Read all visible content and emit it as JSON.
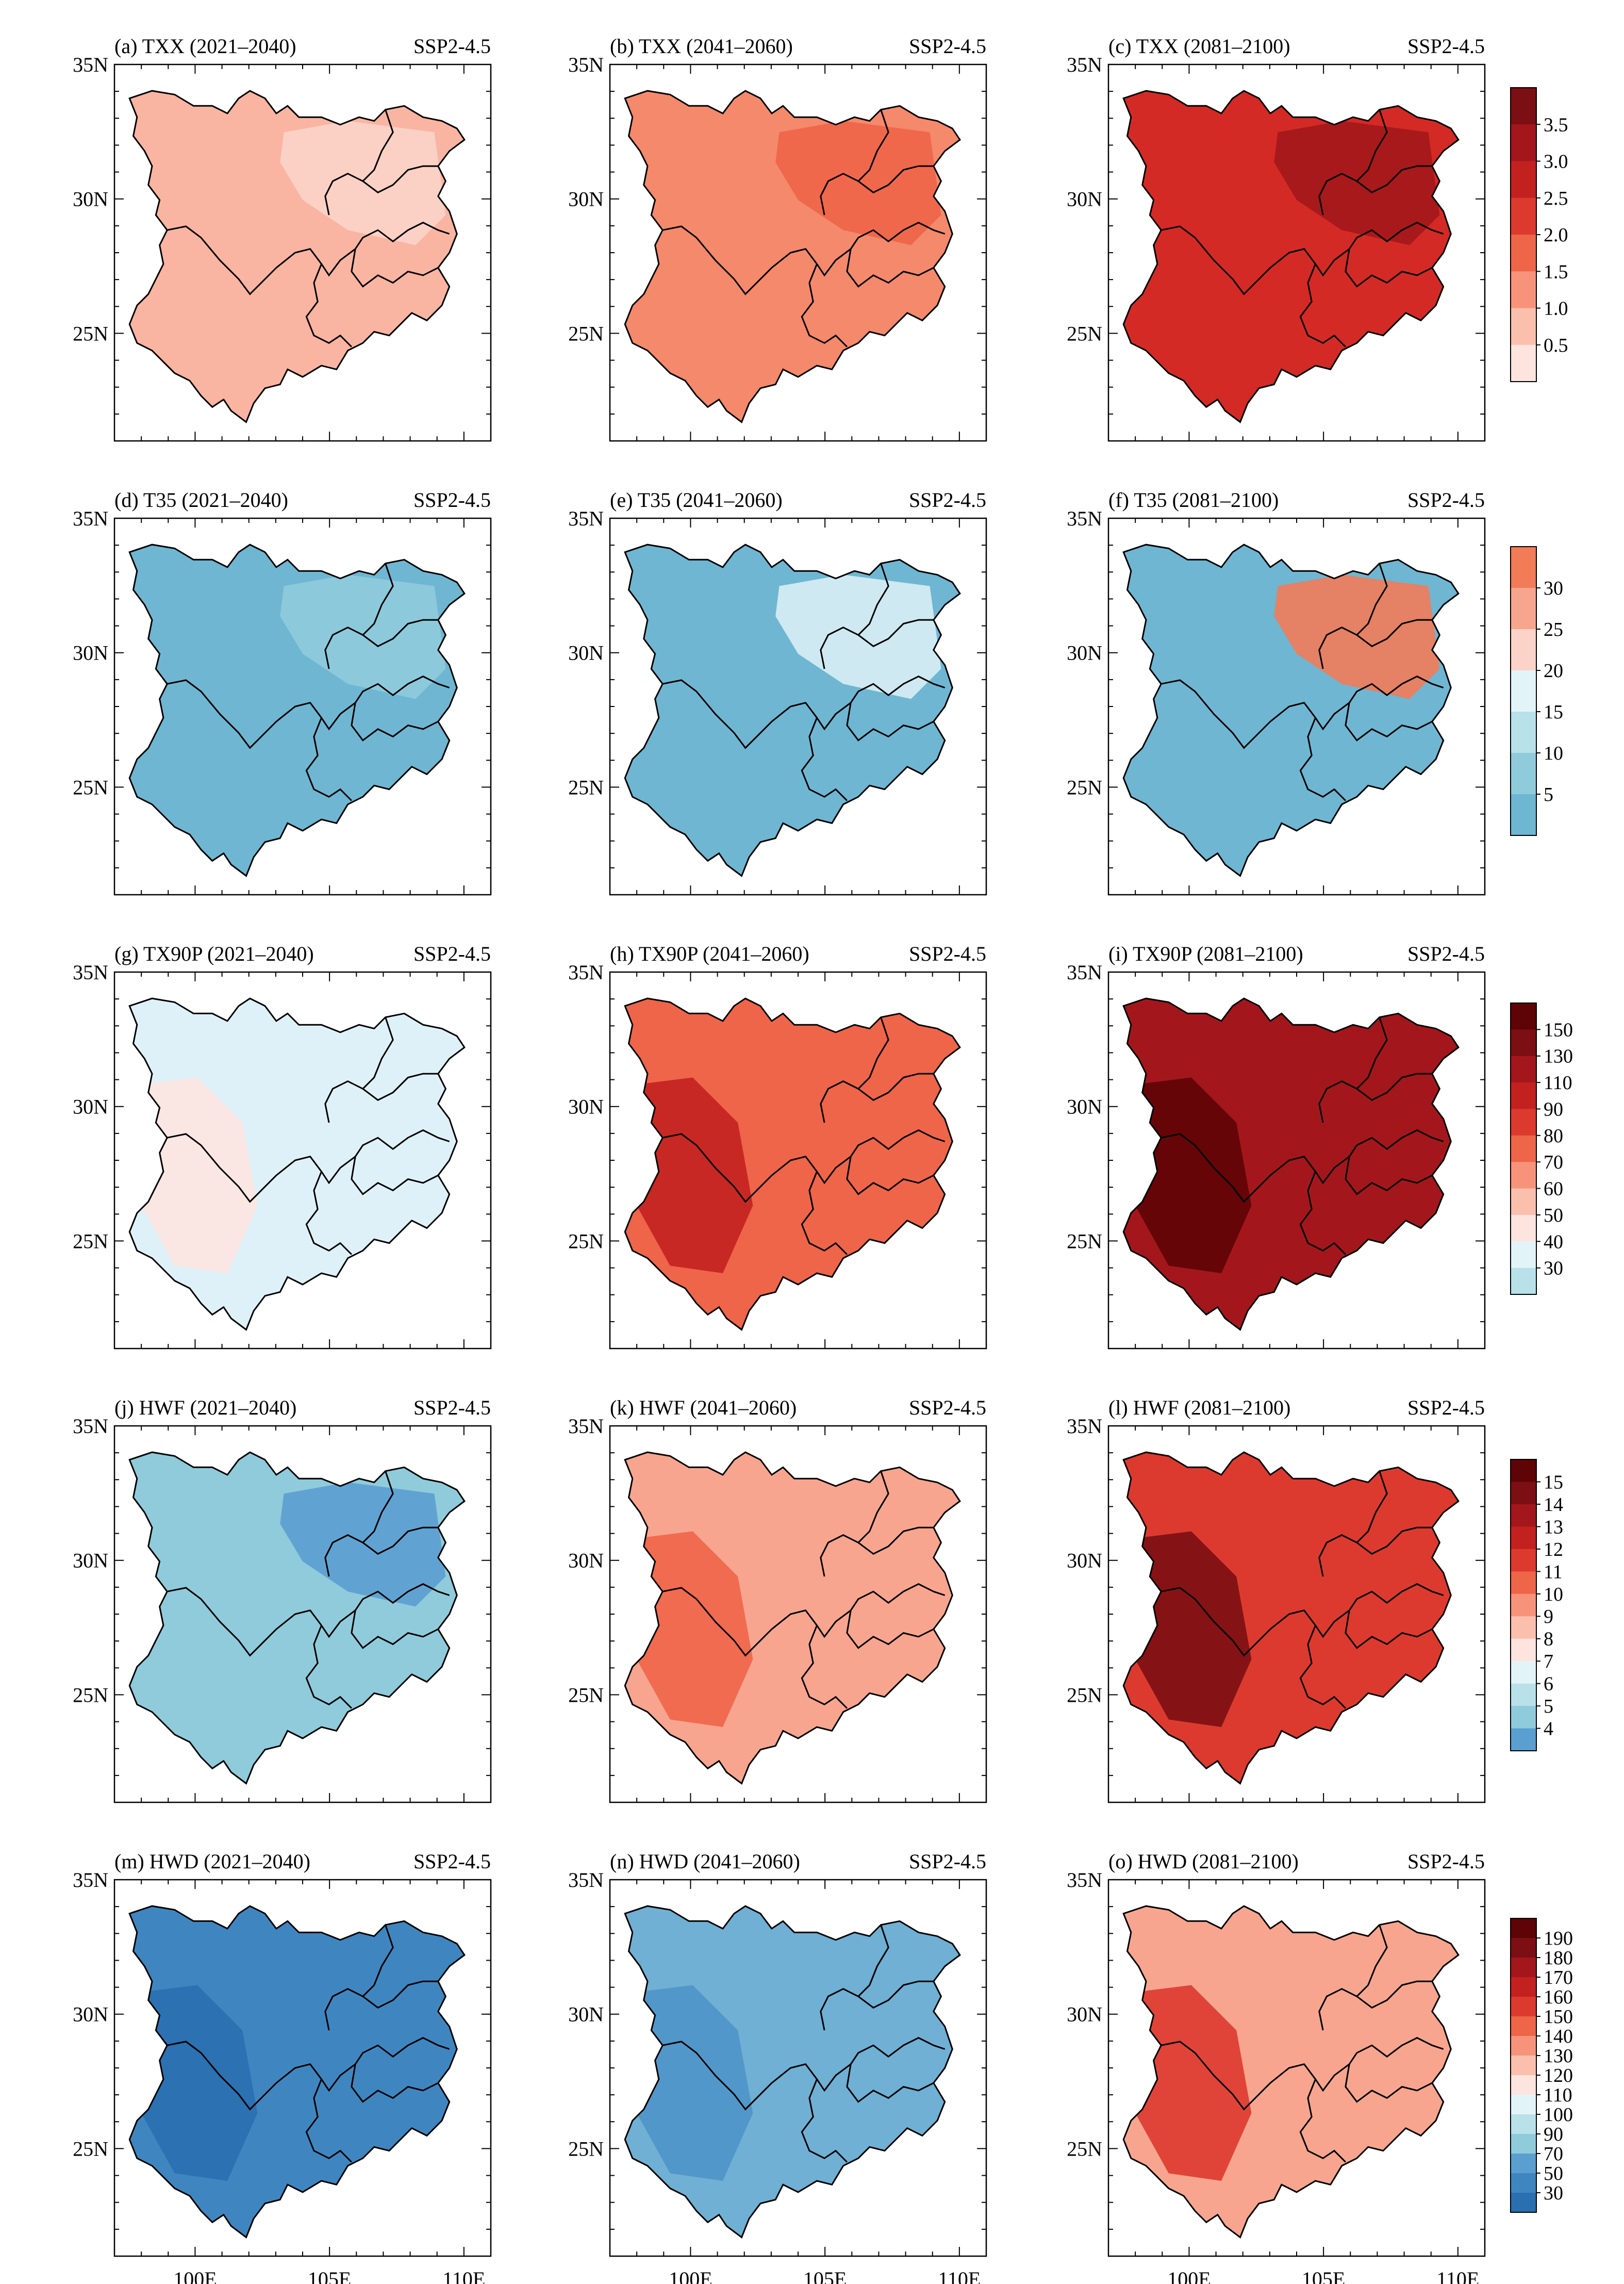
{
  "figure": {
    "scenario": "SSP2-4.5",
    "lat_labels": [
      "35N",
      "30N",
      "25N"
    ],
    "lon_labels": [
      "100E",
      "105E",
      "110E"
    ]
  },
  "rows": [
    {
      "variable": "TXX",
      "colorbar": {
        "labels": [
          "3.5",
          "3.0",
          "2.5",
          "2.0",
          "1.5",
          "1.0",
          "0.5"
        ],
        "colors": [
          "#7b0f14",
          "#a3171c",
          "#c3211f",
          "#dd3a2f",
          "#ee6549",
          "#f7937a",
          "#fbbfae",
          "#fde4df"
        ]
      },
      "panels": [
        {
          "title": "(a) TXX (2021–2040)",
          "fill": "#f9b4a2",
          "accent": "#fbd3c9"
        },
        {
          "title": "(b) TXX (2041–2060)",
          "fill": "#f4896c",
          "accent": "#ee6549"
        },
        {
          "title": "(c) TXX (2081–2100)",
          "fill": "#d42a25",
          "accent": "#a3171c"
        }
      ]
    },
    {
      "variable": "T35",
      "colorbar": {
        "labels": [
          "30",
          "25",
          "20",
          "15",
          "10",
          "5"
        ],
        "colors": [
          "#f27b58",
          "#f7a58f",
          "#fbd3c8",
          "#e3f4f8",
          "#b8e1ea",
          "#8fcbdb",
          "#6fb6d2"
        ]
      },
      "panels": [
        {
          "title": "(d) T35 (2021–2040)",
          "fill": "#6fb6d2",
          "accent": "#8fcbdb"
        },
        {
          "title": "(e) T35 (2041–2060)",
          "fill": "#6fb6d2",
          "accent": "#d8eef4"
        },
        {
          "title": "(f) T35 (2081–2100)",
          "fill": "#6fb6d2",
          "accent": "#f27b58"
        }
      ]
    },
    {
      "variable": "TX90P",
      "colorbar": {
        "labels": [
          "150",
          "130",
          "110",
          "90",
          "80",
          "70",
          "60",
          "50",
          "40",
          "30"
        ],
        "colors": [
          "#5e0306",
          "#7b0f14",
          "#a3171c",
          "#c3211f",
          "#dd3a2f",
          "#ee6549",
          "#f7937a",
          "#fbbfae",
          "#fde4df",
          "#e3f4f8",
          "#b8e1ea"
        ]
      },
      "panels": [
        {
          "title": "(g) TX90P (2021–2040)",
          "fill": "#dff1f8",
          "accent": "#fde4df"
        },
        {
          "title": "(h) TX90P (2041–2060)",
          "fill": "#ee6549",
          "accent": "#c3211f"
        },
        {
          "title": "(i) TX90P (2081–2100)",
          "fill": "#a3171c",
          "accent": "#5e0306"
        }
      ]
    },
    {
      "variable": "HWF",
      "colorbar": {
        "labels": [
          "15",
          "14",
          "13",
          "12",
          "11",
          "10",
          "9",
          "8",
          "7",
          "6",
          "5",
          "4"
        ],
        "colors": [
          "#5e0306",
          "#7b0f14",
          "#a3171c",
          "#c3211f",
          "#dd3a2f",
          "#ee6549",
          "#f7937a",
          "#fbbfae",
          "#fde4df",
          "#e3f4f8",
          "#b8e1ea",
          "#8fcbdb",
          "#5b9fd0"
        ]
      },
      "panels": [
        {
          "title": "(j) HWF (2021–2040)",
          "fill": "#8fcbdb",
          "accent": "#5b9fd0"
        },
        {
          "title": "(k) HWF (2041–2060)",
          "fill": "#f7a58f",
          "accent": "#ee6549"
        },
        {
          "title": "(l) HWF (2081–2100)",
          "fill": "#dd3a2f",
          "accent": "#7b0f14"
        }
      ]
    },
    {
      "variable": "HWD",
      "colorbar": {
        "labels": [
          "190",
          "180",
          "170",
          "160",
          "150",
          "140",
          "130",
          "120",
          "110",
          "100",
          "90",
          "70",
          "50",
          "30"
        ],
        "colors": [
          "#5e0306",
          "#7b0f14",
          "#a3171c",
          "#c3211f",
          "#dd3a2f",
          "#ee6549",
          "#f7937a",
          "#fbbfae",
          "#fde4df",
          "#e3f4f8",
          "#b8e1ea",
          "#8fcbdb",
          "#5b9fd0",
          "#3f86c0",
          "#2a6fb0"
        ]
      },
      "panels": [
        {
          "title": "(m) HWD (2021–2040)",
          "fill": "#3f86c0",
          "accent": "#2a6fb0"
        },
        {
          "title": "(n) HWD (2041–2060)",
          "fill": "#6fb0d4",
          "accent": "#4f95c8"
        },
        {
          "title": "(o) HWD (2081–2100)",
          "fill": "#f7a58f",
          "accent": "#dd3a2f"
        }
      ]
    }
  ]
}
